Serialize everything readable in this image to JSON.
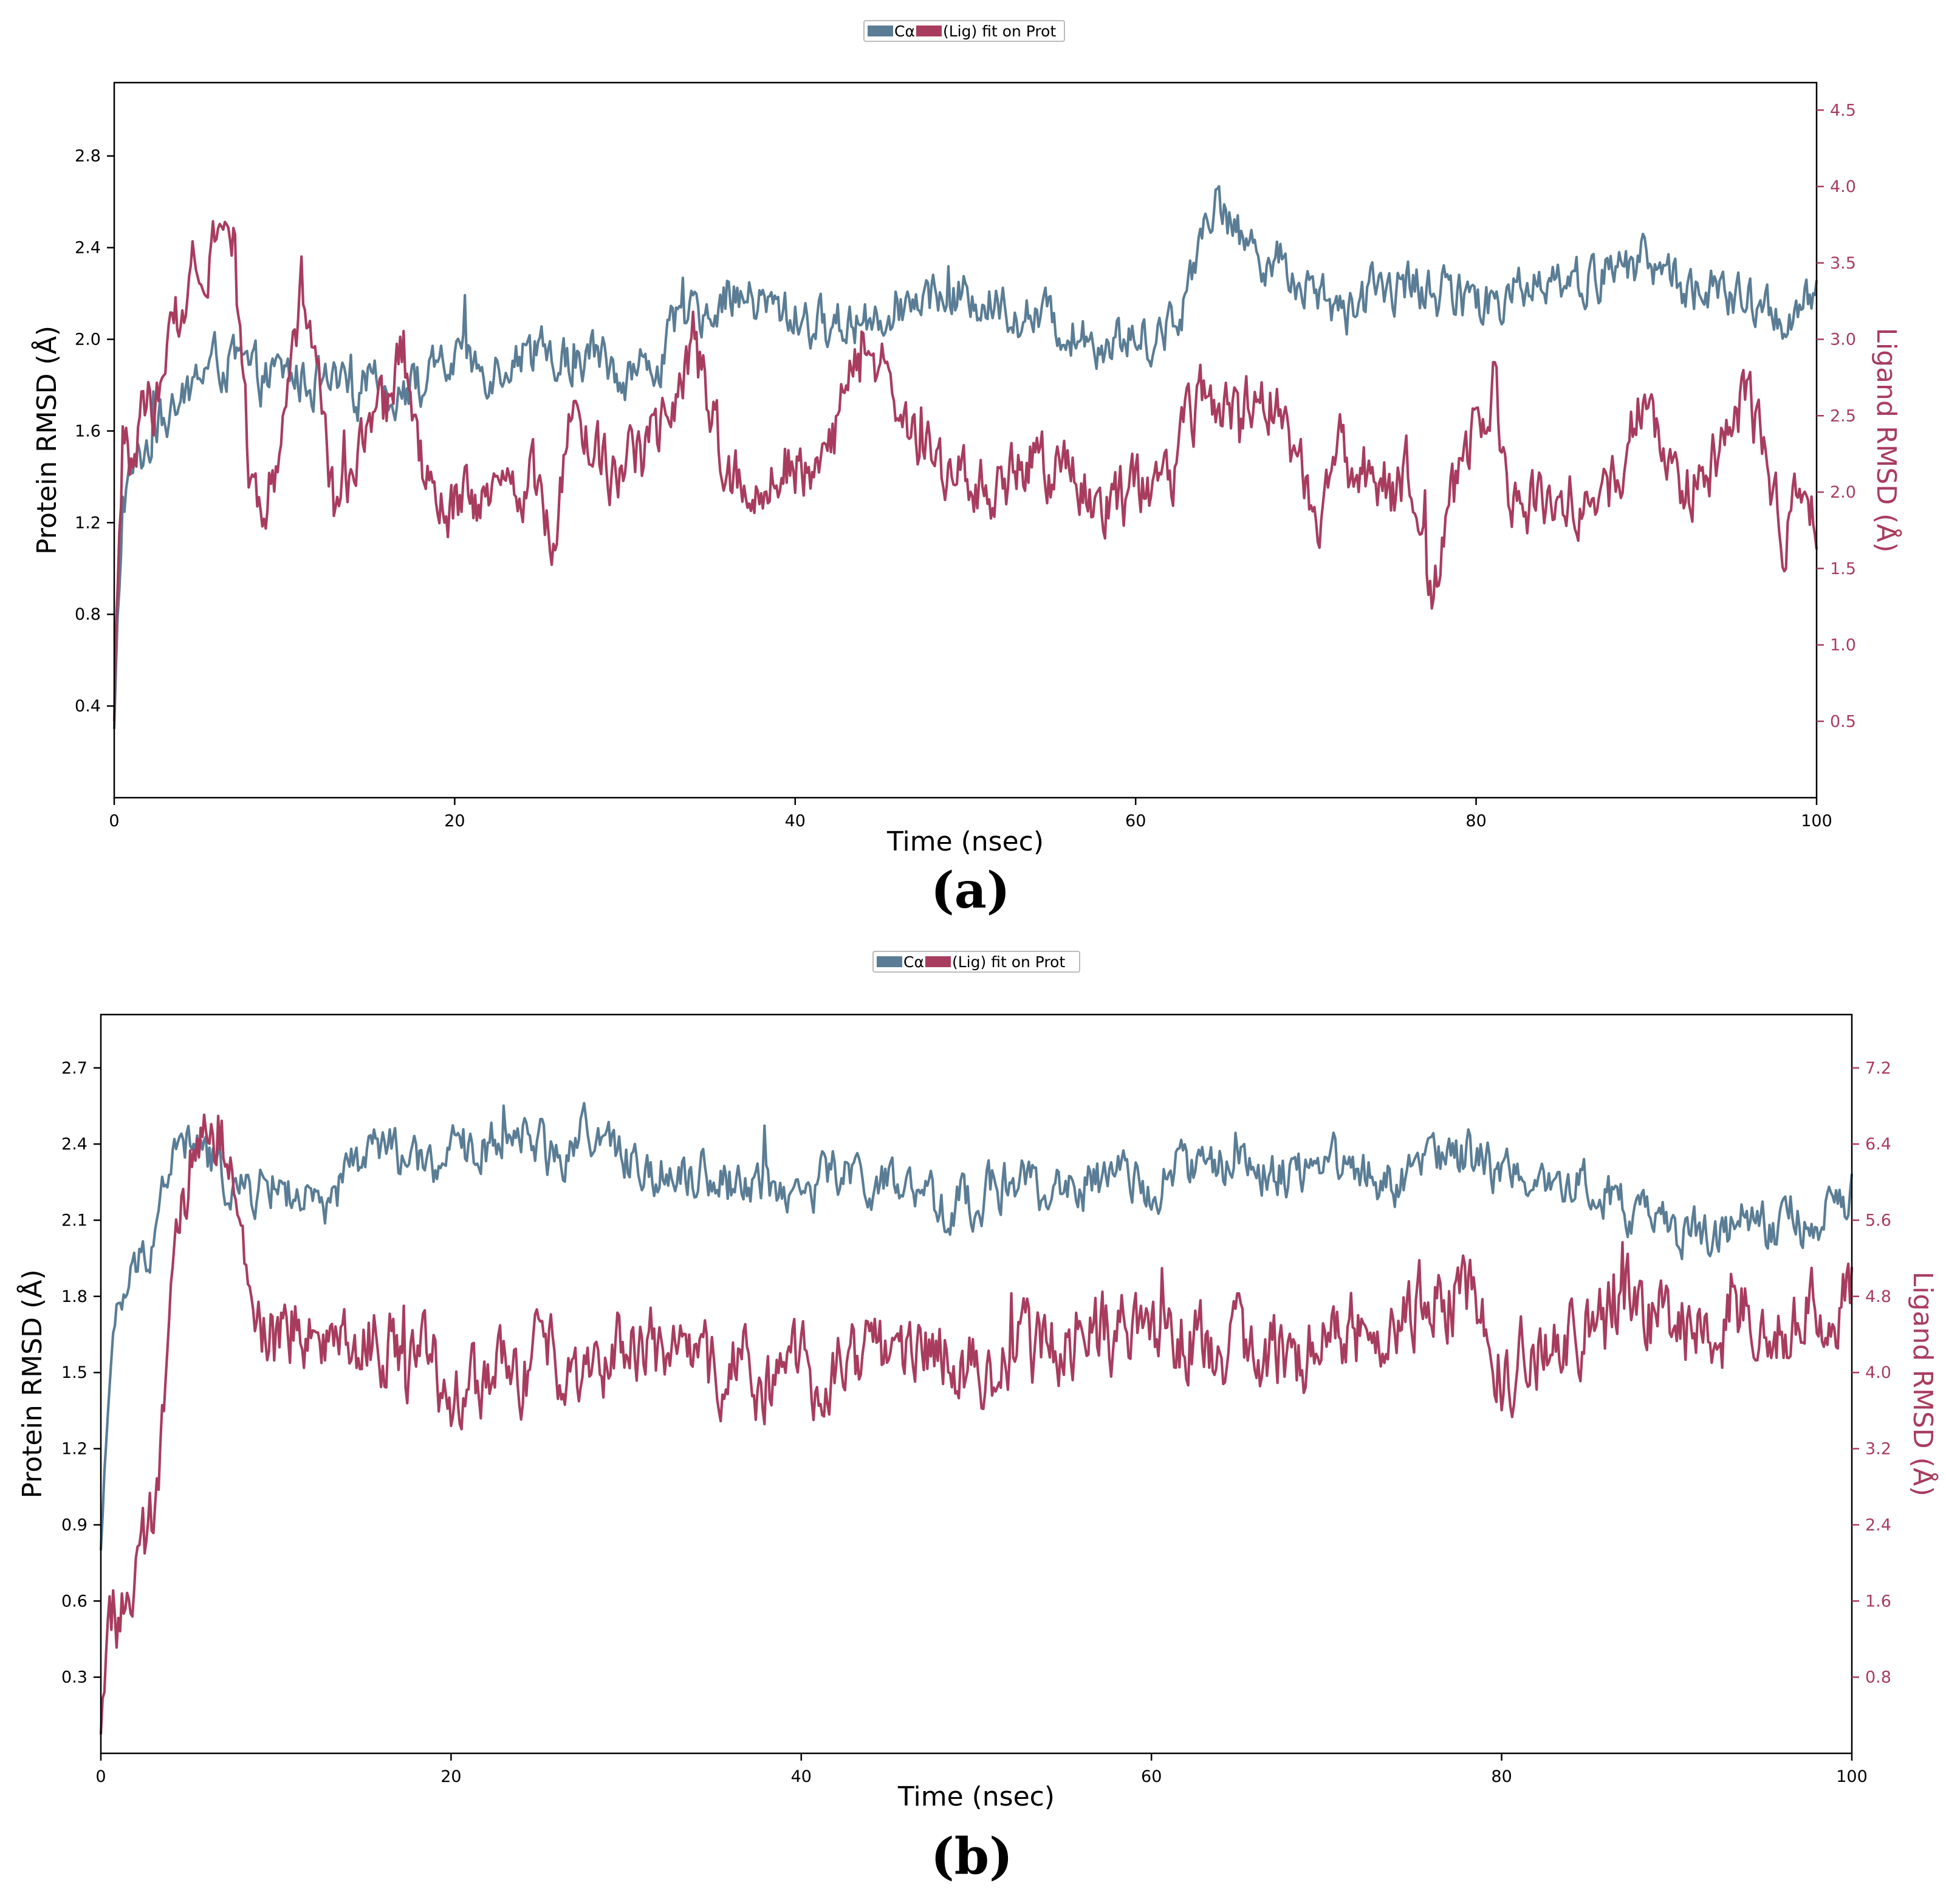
{
  "colors": {
    "protein": "#5a7d95",
    "ligand": "#a83c5f",
    "axis": "#000000",
    "legend_border": "#bbbbbb"
  },
  "panels": [
    {
      "label": "(a)"
    },
    {
      "label": "(b)"
    }
  ],
  "chart_data": [
    {
      "type": "line",
      "panel": "(a)",
      "legend": {
        "entries": [
          "Cα",
          "(Lig) fit on Prot"
        ],
        "placement": "top-center"
      },
      "xlabel": "Time (nsec)",
      "ylabel": "Protein RMSD (Å)",
      "y2label": "Ligand RMSD (Å)",
      "xlim": [
        0,
        100
      ],
      "ylim": [
        0,
        3.12
      ],
      "y2lim": [
        0,
        4.68
      ],
      "xticks": [
        0,
        20,
        40,
        60,
        80,
        100
      ],
      "yticks": [
        0.4,
        0.8,
        1.2,
        1.6,
        2.0,
        2.4,
        2.8
      ],
      "y2ticks": [
        0.5,
        1.0,
        1.5,
        2.0,
        2.5,
        3.0,
        3.5,
        4.0,
        4.5
      ],
      "n_points": 1001,
      "series": [
        {
          "name": "Cα",
          "axis": "left",
          "keypoints": [
            [
              0,
              0.3
            ],
            [
              0.5,
              1.3
            ],
            [
              1,
              1.4
            ],
            [
              2,
              1.55
            ],
            [
              3,
              1.65
            ],
            [
              4,
              1.7
            ],
            [
              5,
              1.85
            ],
            [
              6,
              1.9
            ],
            [
              7,
              1.9
            ],
            [
              8,
              1.85
            ],
            [
              9,
              1.82
            ],
            [
              10,
              1.85
            ],
            [
              12,
              1.8
            ],
            [
              14,
              1.75
            ],
            [
              15,
              1.8
            ],
            [
              16,
              1.78
            ],
            [
              18,
              1.8
            ],
            [
              19,
              1.85
            ],
            [
              20,
              1.9
            ],
            [
              22,
              1.88
            ],
            [
              24,
              1.95
            ],
            [
              26,
              1.9
            ],
            [
              28,
              1.95
            ],
            [
              30,
              1.85
            ],
            [
              32,
              1.9
            ],
            [
              33,
              2.05
            ],
            [
              34,
              2.1
            ],
            [
              35,
              2.15
            ],
            [
              36,
              2.2
            ],
            [
              38,
              2.15
            ],
            [
              40,
              2.1
            ],
            [
              42,
              2.05
            ],
            [
              44,
              2.1
            ],
            [
              46,
              2.15
            ],
            [
              48,
              2.2
            ],
            [
              50,
              2.2
            ],
            [
              52,
              2.15
            ],
            [
              54,
              2.1
            ],
            [
              56,
              2.05
            ],
            [
              58,
              2.0
            ],
            [
              60,
              2.0
            ],
            [
              62,
              2.05
            ],
            [
              63,
              2.2
            ],
            [
              64,
              2.55
            ],
            [
              65,
              2.6
            ],
            [
              66,
              2.45
            ],
            [
              68,
              2.35
            ],
            [
              70,
              2.25
            ],
            [
              72,
              2.1
            ],
            [
              74,
              2.2
            ],
            [
              76,
              2.25
            ],
            [
              78,
              2.2
            ],
            [
              80,
              2.15
            ],
            [
              82,
              2.2
            ],
            [
              84,
              2.3
            ],
            [
              86,
              2.25
            ],
            [
              88,
              2.3
            ],
            [
              90,
              2.35
            ],
            [
              92,
              2.25
            ],
            [
              94,
              2.2
            ],
            [
              96,
              2.15
            ],
            [
              98,
              2.1
            ],
            [
              100,
              2.15
            ]
          ],
          "noise": 0.09
        },
        {
          "name": "(Lig) fit on Prot",
          "axis": "right",
          "keypoints": [
            [
              0,
              0.5
            ],
            [
              0.5,
              2.4
            ],
            [
              1,
              2.2
            ],
            [
              2,
              2.6
            ],
            [
              3,
              2.7
            ],
            [
              4,
              3.3
            ],
            [
              5,
              3.6
            ],
            [
              6,
              3.7
            ],
            [
              7,
              3.75
            ],
            [
              8,
              2.0
            ],
            [
              9,
              1.95
            ],
            [
              10,
              2.6
            ],
            [
              11,
              3.3
            ],
            [
              12,
              2.8
            ],
            [
              13,
              1.8
            ],
            [
              14,
              2.2
            ],
            [
              15,
              2.3
            ],
            [
              16,
              2.5
            ],
            [
              17,
              2.9
            ],
            [
              18,
              2.2
            ],
            [
              19,
              1.8
            ],
            [
              20,
              1.9
            ],
            [
              22,
              1.9
            ],
            [
              24,
              2.1
            ],
            [
              25,
              2.0
            ],
            [
              26,
              1.7
            ],
            [
              27,
              2.7
            ],
            [
              28,
              2.4
            ],
            [
              29,
              2.1
            ],
            [
              30,
              2.2
            ],
            [
              32,
              2.3
            ],
            [
              33,
              2.6
            ],
            [
              34,
              3.0
            ],
            [
              35,
              2.5
            ],
            [
              36,
              2.1
            ],
            [
              38,
              2.05
            ],
            [
              40,
              2.2
            ],
            [
              42,
              2.2
            ],
            [
              43,
              2.7
            ],
            [
              44,
              3.0
            ],
            [
              45,
              2.8
            ],
            [
              46,
              2.5
            ],
            [
              48,
              2.2
            ],
            [
              50,
              2.1
            ],
            [
              52,
              2.0
            ],
            [
              54,
              2.2
            ],
            [
              56,
              2.1
            ],
            [
              58,
              1.9
            ],
            [
              60,
              2.0
            ],
            [
              62,
              2.1
            ],
            [
              63,
              2.4
            ],
            [
              64,
              2.6
            ],
            [
              66,
              2.5
            ],
            [
              68,
              2.6
            ],
            [
              69,
              2.4
            ],
            [
              70,
              2.0
            ],
            [
              71,
              1.8
            ],
            [
              72,
              2.2
            ],
            [
              74,
              2.1
            ],
            [
              75,
              2.0
            ],
            [
              76,
              2.1
            ],
            [
              77,
              1.6
            ],
            [
              77.5,
              1.2
            ],
            [
              78,
              1.7
            ],
            [
              80,
              2.4
            ],
            [
              81,
              2.7
            ],
            [
              82,
              1.9
            ],
            [
              84,
              1.9
            ],
            [
              86,
              1.95
            ],
            [
              88,
              2.0
            ],
            [
              89,
              2.4
            ],
            [
              90,
              2.7
            ],
            [
              91,
              2.2
            ],
            [
              92,
              2.0
            ],
            [
              94,
              2.2
            ],
            [
              95,
              2.5
            ],
            [
              96,
              2.6
            ],
            [
              97,
              2.3
            ],
            [
              98,
              1.8
            ],
            [
              100,
              1.9
            ]
          ],
          "noise": 0.18
        }
      ]
    },
    {
      "type": "line",
      "panel": "(b)",
      "legend": {
        "entries": [
          "Cα",
          "(Lig) fit on Prot"
        ],
        "placement": "top-center"
      },
      "xlabel": "Time (nsec)",
      "ylabel": "Protein RMSD (Å)",
      "y2label": "Ligand RMSD (Å)",
      "xlim": [
        0,
        100
      ],
      "ylim": [
        0,
        2.91
      ],
      "y2lim": [
        0,
        7.76
      ],
      "xticks": [
        0,
        20,
        40,
        60,
        80,
        100
      ],
      "yticks": [
        0.3,
        0.6,
        0.9,
        1.2,
        1.5,
        1.8,
        2.1,
        2.4,
        2.7
      ],
      "y2ticks": [
        0.8,
        1.6,
        2.4,
        3.2,
        4.0,
        4.8,
        5.6,
        6.4,
        7.2
      ],
      "n_points": 1001,
      "series": [
        {
          "name": "Cα",
          "axis": "left",
          "keypoints": [
            [
              0,
              0.8
            ],
            [
              0.3,
              1.3
            ],
            [
              1,
              1.75
            ],
            [
              2,
              1.9
            ],
            [
              3,
              2.05
            ],
            [
              4,
              2.35
            ],
            [
              5,
              2.4
            ],
            [
              6,
              2.35
            ],
            [
              8,
              2.2
            ],
            [
              10,
              2.25
            ],
            [
              12,
              2.15
            ],
            [
              13,
              2.1
            ],
            [
              14,
              2.3
            ],
            [
              16,
              2.4
            ],
            [
              18,
              2.3
            ],
            [
              20,
              2.35
            ],
            [
              22,
              2.4
            ],
            [
              24,
              2.45
            ],
            [
              26,
              2.35
            ],
            [
              28,
              2.45
            ],
            [
              30,
              2.35
            ],
            [
              32,
              2.3
            ],
            [
              34,
              2.3
            ],
            [
              36,
              2.25
            ],
            [
              38,
              2.25
            ],
            [
              40,
              2.2
            ],
            [
              42,
              2.3
            ],
            [
              44,
              2.25
            ],
            [
              46,
              2.2
            ],
            [
              48,
              2.15
            ],
            [
              50,
              2.2
            ],
            [
              52,
              2.25
            ],
            [
              54,
              2.2
            ],
            [
              56,
              2.25
            ],
            [
              58,
              2.25
            ],
            [
              60,
              2.25
            ],
            [
              62,
              2.3
            ],
            [
              64,
              2.3
            ],
            [
              66,
              2.3
            ],
            [
              68,
              2.3
            ],
            [
              70,
              2.35
            ],
            [
              72,
              2.3
            ],
            [
              74,
              2.25
            ],
            [
              76,
              2.35
            ],
            [
              78,
              2.35
            ],
            [
              80,
              2.3
            ],
            [
              82,
              2.3
            ],
            [
              84,
              2.25
            ],
            [
              86,
              2.2
            ],
            [
              88,
              2.1
            ],
            [
              90,
              2.05
            ],
            [
              92,
              2.05
            ],
            [
              94,
              2.1
            ],
            [
              96,
              2.05
            ],
            [
              98,
              2.1
            ],
            [
              100,
              2.2
            ]
          ],
          "noise": 0.08
        },
        {
          "name": "(Lig) fit on Prot",
          "axis": "right",
          "keypoints": [
            [
              0,
              0.2
            ],
            [
              0.4,
              1.6
            ],
            [
              1,
              1.4
            ],
            [
              2,
              1.8
            ],
            [
              3,
              2.4
            ],
            [
              4,
              4.6
            ],
            [
              5,
              6.0
            ],
            [
              6,
              6.8
            ],
            [
              7,
              6.5
            ],
            [
              8,
              5.2
            ],
            [
              9,
              4.5
            ],
            [
              10,
              4.3
            ],
            [
              12,
              4.5
            ],
            [
              14,
              4.4
            ],
            [
              16,
              4.3
            ],
            [
              18,
              4.2
            ],
            [
              20,
              3.8
            ],
            [
              22,
              3.9
            ],
            [
              24,
              4.0
            ],
            [
              26,
              4.2
            ],
            [
              28,
              4.1
            ],
            [
              30,
              4.3
            ],
            [
              32,
              4.2
            ],
            [
              34,
              4.0
            ],
            [
              36,
              4.1
            ],
            [
              38,
              3.9
            ],
            [
              40,
              4.0
            ],
            [
              42,
              4.1
            ],
            [
              44,
              4.2
            ],
            [
              46,
              4.3
            ],
            [
              48,
              4.2
            ],
            [
              50,
              4.0
            ],
            [
              52,
              4.2
            ],
            [
              54,
              4.3
            ],
            [
              56,
              4.4
            ],
            [
              58,
              4.4
            ],
            [
              60,
              4.4
            ],
            [
              62,
              4.4
            ],
            [
              64,
              4.3
            ],
            [
              66,
              4.3
            ],
            [
              68,
              4.2
            ],
            [
              70,
              4.3
            ],
            [
              72,
              4.5
            ],
            [
              74,
              4.7
            ],
            [
              76,
              4.8
            ],
            [
              78,
              4.8
            ],
            [
              79,
              4.5
            ],
            [
              80,
              4.0
            ],
            [
              82,
              4.2
            ],
            [
              84,
              4.3
            ],
            [
              86,
              4.5
            ],
            [
              87,
              4.9
            ],
            [
              88,
              4.6
            ],
            [
              90,
              4.5
            ],
            [
              92,
              4.4
            ],
            [
              94,
              4.6
            ],
            [
              96,
              4.5
            ],
            [
              98,
              4.7
            ],
            [
              100,
              4.8
            ]
          ],
          "noise": 0.35
        }
      ]
    }
  ]
}
